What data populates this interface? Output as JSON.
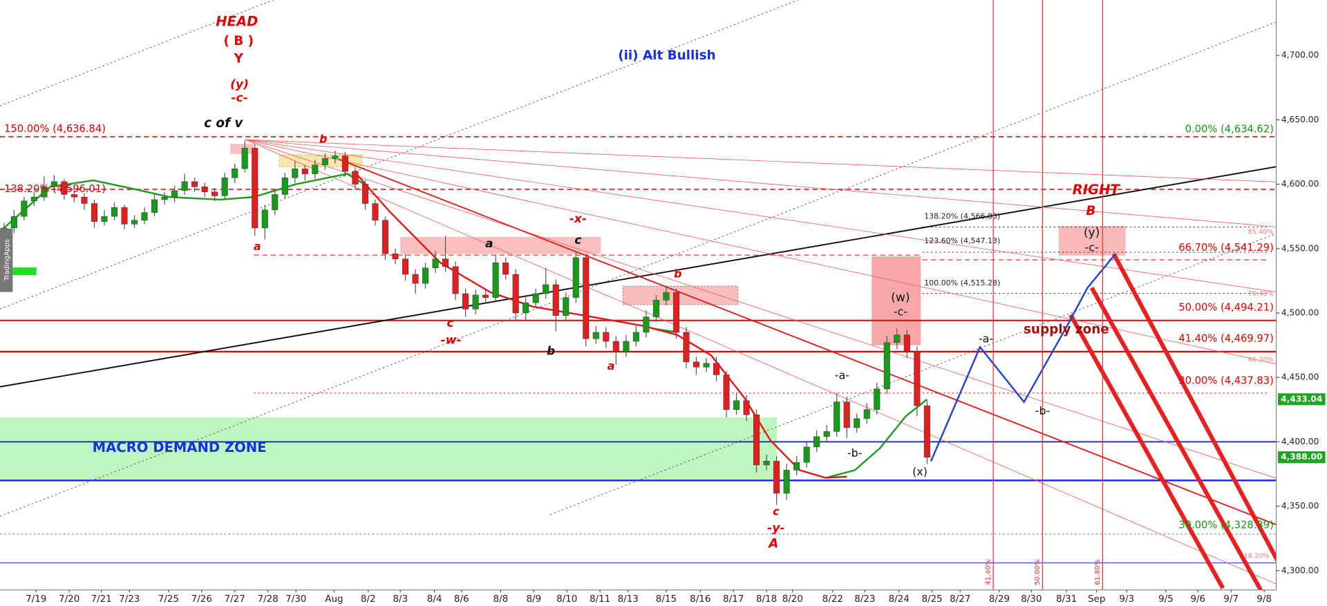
{
  "chart_data": {
    "type": "candlestick",
    "watermark": "TradingApps",
    "up_color": "#1a9a1a",
    "down_color": "#e02020",
    "xlim": [
      -0.4,
      126.8
    ],
    "ylim": [
      4285,
      4743
    ],
    "yticks": [
      {
        "value": 4300,
        "label": "4,300.00"
      },
      {
        "value": 4350,
        "label": "4,350.00"
      },
      {
        "value": 4400,
        "label": "4,400.00"
      },
      {
        "value": 4450,
        "label": "4,450.00"
      },
      {
        "value": 4500,
        "label": "4,500.00"
      },
      {
        "value": 4550,
        "label": "4,550.00"
      },
      {
        "value": 4600,
        "label": "4,600.00"
      },
      {
        "value": 4650,
        "label": "4,650.00"
      },
      {
        "value": 4700,
        "label": "4,700.00"
      }
    ],
    "xticks": [
      {
        "value": 3.2,
        "label": "7/19"
      },
      {
        "value": 6.5,
        "label": "7/20"
      },
      {
        "value": 9.7,
        "label": "7/21"
      },
      {
        "value": 12.5,
        "label": "7/23"
      },
      {
        "value": 16.4,
        "label": "7/25"
      },
      {
        "value": 19.7,
        "label": "7/26"
      },
      {
        "value": 23.0,
        "label": "7/27"
      },
      {
        "value": 26.3,
        "label": "7/28"
      },
      {
        "value": 29.1,
        "label": "7/30"
      },
      {
        "value": 32.9,
        "label": "Aug"
      },
      {
        "value": 36.3,
        "label": "8/2"
      },
      {
        "value": 39.5,
        "label": "8/3"
      },
      {
        "value": 42.9,
        "label": "8/4"
      },
      {
        "value": 45.6,
        "label": "8/6"
      },
      {
        "value": 49.5,
        "label": "8/8"
      },
      {
        "value": 52.8,
        "label": "8/9"
      },
      {
        "value": 56.1,
        "label": "8/10"
      },
      {
        "value": 59.4,
        "label": "8/11"
      },
      {
        "value": 62.2,
        "label": "8/13"
      },
      {
        "value": 66.0,
        "label": "8/15"
      },
      {
        "value": 69.4,
        "label": "8/16"
      },
      {
        "value": 72.7,
        "label": "8/17"
      },
      {
        "value": 76.0,
        "label": "8/18"
      },
      {
        "value": 78.6,
        "label": "8/20"
      },
      {
        "value": 82.6,
        "label": "8/22"
      },
      {
        "value": 85.8,
        "label": "8/23"
      },
      {
        "value": 89.2,
        "label": "8/24"
      },
      {
        "value": 92.5,
        "label": "8/25"
      },
      {
        "value": 95.3,
        "label": "8/27"
      },
      {
        "value": 99.2,
        "label": "8/29"
      },
      {
        "value": 102.4,
        "label": "8/30"
      },
      {
        "value": 105.9,
        "label": "8/31"
      },
      {
        "value": 108.9,
        "label": "Sep"
      },
      {
        "value": 111.9,
        "label": "9/3"
      },
      {
        "value": 115.8,
        "label": "9/5"
      },
      {
        "value": 119.0,
        "label": "9/6"
      },
      {
        "value": 122.3,
        "label": "9/7"
      },
      {
        "value": 125.6,
        "label": "9/8"
      }
    ],
    "x": [
      0,
      1,
      2,
      3,
      4,
      5,
      6,
      7,
      8,
      9,
      10,
      11,
      12,
      13,
      14,
      15,
      16,
      17,
      18,
      19,
      20,
      21,
      22,
      23,
      24,
      25,
      26,
      27,
      28,
      29,
      30,
      31,
      32,
      33,
      34,
      35,
      36,
      37,
      38,
      39,
      40,
      41,
      42,
      43,
      44,
      45,
      46,
      47,
      48,
      49,
      50,
      51,
      52,
      53,
      54,
      55,
      56,
      57,
      58,
      59,
      60,
      61,
      62,
      63,
      64,
      65,
      66,
      67,
      68,
      69,
      70,
      71,
      72,
      73,
      74,
      75,
      76,
      77,
      78,
      79,
      80,
      81,
      82,
      83,
      84,
      85,
      86,
      87,
      88,
      89,
      90,
      91,
      92
    ],
    "ohlc": [
      [
        4560,
        4570,
        4555,
        4566
      ],
      [
        4566,
        4580,
        4562,
        4575
      ],
      [
        4575,
        4590,
        4572,
        4587
      ],
      [
        4587,
        4594,
        4583,
        4590
      ],
      [
        4590,
        4606,
        4587,
        4598
      ],
      [
        4598,
        4607,
        4594,
        4602
      ],
      [
        4602,
        4604,
        4588,
        4592
      ],
      [
        4592,
        4596,
        4586,
        4590
      ],
      [
        4590,
        4593,
        4580,
        4585
      ],
      [
        4585,
        4588,
        4566,
        4571
      ],
      [
        4571,
        4580,
        4568,
        4575
      ],
      [
        4575,
        4586,
        4572,
        4582
      ],
      [
        4582,
        4584,
        4565,
        4569
      ],
      [
        4569,
        4576,
        4566,
        4572
      ],
      [
        4572,
        4582,
        4569,
        4578
      ],
      [
        4578,
        4592,
        4575,
        4588
      ],
      [
        4588,
        4594,
        4584,
        4590
      ],
      [
        4590,
        4599,
        4586,
        4595
      ],
      [
        4595,
        4608,
        4592,
        4602
      ],
      [
        4602,
        4605,
        4594,
        4598
      ],
      [
        4598,
        4601,
        4590,
        4594
      ],
      [
        4594,
        4597,
        4587,
        4591
      ],
      [
        4591,
        4609,
        4588,
        4605
      ],
      [
        4605,
        4616,
        4601,
        4612
      ],
      [
        4612,
        4634,
        4609,
        4628
      ],
      [
        4628,
        4631,
        4560,
        4566
      ],
      [
        4566,
        4584,
        4557,
        4580
      ],
      [
        4580,
        4596,
        4576,
        4592
      ],
      [
        4592,
        4609,
        4589,
        4605
      ],
      [
        4605,
        4618,
        4601,
        4612
      ],
      [
        4612,
        4615,
        4603,
        4608
      ],
      [
        4608,
        4619,
        4604,
        4615
      ],
      [
        4615,
        4624,
        4611,
        4620
      ],
      [
        4620,
        4626,
        4616,
        4622
      ],
      [
        4622,
        4625,
        4606,
        4610
      ],
      [
        4610,
        4613,
        4596,
        4600
      ],
      [
        4600,
        4603,
        4580,
        4585
      ],
      [
        4585,
        4588,
        4568,
        4572
      ],
      [
        4572,
        4575,
        4541,
        4546
      ],
      [
        4546,
        4550,
        4538,
        4542
      ],
      [
        4542,
        4546,
        4525,
        4530
      ],
      [
        4530,
        4534,
        4515,
        4523
      ],
      [
        4523,
        4539,
        4519,
        4535
      ],
      [
        4535,
        4548,
        4531,
        4542
      ],
      [
        4542,
        4560,
        4532,
        4536
      ],
      [
        4536,
        4540,
        4510,
        4515
      ],
      [
        4515,
        4519,
        4497,
        4503
      ],
      [
        4503,
        4518,
        4499,
        4514
      ],
      [
        4514,
        4518,
        4507,
        4512
      ],
      [
        4512,
        4545,
        4509,
        4539
      ],
      [
        4539,
        4543,
        4526,
        4530
      ],
      [
        4530,
        4534,
        4494,
        4500
      ],
      [
        4500,
        4512,
        4494,
        4508
      ],
      [
        4508,
        4519,
        4504,
        4515
      ],
      [
        4515,
        4535,
        4511,
        4522
      ],
      [
        4522,
        4526,
        4486,
        4498
      ],
      [
        4498,
        4516,
        4494,
        4512
      ],
      [
        4512,
        4548,
        4508,
        4543
      ],
      [
        4543,
        4546,
        4474,
        4480
      ],
      [
        4480,
        4490,
        4476,
        4485
      ],
      [
        4485,
        4489,
        4473,
        4478
      ],
      [
        4478,
        4482,
        4460,
        4470
      ],
      [
        4470,
        4483,
        4466,
        4478
      ],
      [
        4478,
        4490,
        4474,
        4485
      ],
      [
        4485,
        4502,
        4481,
        4497
      ],
      [
        4497,
        4514,
        4493,
        4510
      ],
      [
        4510,
        4521,
        4506,
        4516
      ],
      [
        4516,
        4519,
        4480,
        4485
      ],
      [
        4485,
        4489,
        4457,
        4462
      ],
      [
        4462,
        4466,
        4452,
        4458
      ],
      [
        4458,
        4465,
        4454,
        4461
      ],
      [
        4461,
        4466,
        4447,
        4452
      ],
      [
        4452,
        4455,
        4419,
        4425
      ],
      [
        4425,
        4438,
        4421,
        4432
      ],
      [
        4432,
        4436,
        4416,
        4421
      ],
      [
        4421,
        4425,
        4376,
        4382
      ],
      [
        4382,
        4390,
        4378,
        4385
      ],
      [
        4385,
        4389,
        4351,
        4360
      ],
      [
        4360,
        4383,
        4355,
        4378
      ],
      [
        4378,
        4389,
        4374,
        4384
      ],
      [
        4384,
        4400,
        4380,
        4396
      ],
      [
        4396,
        4409,
        4392,
        4404
      ],
      [
        4404,
        4413,
        4400,
        4408
      ],
      [
        4408,
        4438,
        4404,
        4431
      ],
      [
        4431,
        4435,
        4403,
        4411
      ],
      [
        4411,
        4422,
        4407,
        4418
      ],
      [
        4418,
        4430,
        4414,
        4425
      ],
      [
        4425,
        4446,
        4421,
        4441
      ],
      [
        4441,
        4482,
        4437,
        4477
      ],
      [
        4477,
        4488,
        4472,
        4483
      ],
      [
        4483,
        4487,
        4465,
        4470
      ],
      [
        4470,
        4474,
        4420,
        4428
      ],
      [
        4428,
        4432,
        4383,
        4388
      ]
    ],
    "lines": [
      {
        "color": "#1f9a1f",
        "x": [
          0,
          4.6,
          8.9,
          13.1,
          16.5,
          21.5,
          24.9,
          29.1,
          34.2,
          35.9,
          50,
          64.6,
          67.1,
          75,
          81.9,
          84.8,
          87.3,
          89.9,
          92
        ],
        "values": [
          4566,
          4598,
          4603,
          4596,
          4590,
          4588,
          4590,
          4600,
          4608,
          4600,
          null,
          4488,
          4485,
          null,
          4372,
          4378,
          4395,
          4420,
          4433
        ]
      },
      {
        "color": "#e01818",
        "x": [
          35,
          38.4,
          43.5,
          48.5,
          52.7,
          58.6,
          63.7,
          67.1,
          70.5,
          73.8,
          76.4,
          79.3,
          81.9,
          84
        ],
        "values": [
          4609,
          4579,
          4539,
          4516,
          4505,
          4497,
          4490,
          4483,
          4467,
          4434,
          4401,
          4378,
          4372,
          4373
        ]
      }
    ],
    "zones": [
      {
        "label": "MACRO DEMAND ZONE",
        "low": 4371,
        "high": 4419,
        "color": "#b4f5b4"
      }
    ],
    "levels": [
      {
        "value": 4636.84,
        "label": "150.00% (4,636.84)",
        "color": "#e00000",
        "dash": "dashed"
      },
      {
        "value": 4596.01,
        "label": "138.20% (4,596.01)",
        "color": "#e00000",
        "dash": "dashed"
      },
      {
        "value": 4634.62,
        "label": "0.00% (4,634.62)",
        "color": "#119911",
        "dash": "none"
      },
      {
        "value": 4566.83,
        "label": "138.20% (4,566.83)",
        "color": "#222222",
        "dash": "dotted"
      },
      {
        "value": 4547.13,
        "label": "123.60% (4,547.13)",
        "color": "#222222",
        "dash": "dotted"
      },
      {
        "value": 4515.28,
        "label": "100.00% (4,515.28)",
        "color": "#222222",
        "dash": "dotted"
      },
      {
        "value": 4541.29,
        "label": "66.70% (4,541.29)",
        "color": "#e00000",
        "dash": "dashed"
      },
      {
        "value": 4494.21,
        "label": "50.00% (4,494.21)",
        "color": "#e00000",
        "dash": "solid"
      },
      {
        "value": 4469.97,
        "label": "41.40% (4,469.97)",
        "color": "#e00000",
        "dash": "solid"
      },
      {
        "value": 4437.83,
        "label": "30.00% (4,437.83)",
        "color": "#e00000",
        "dash": "dotted"
      },
      {
        "value": 4328.39,
        "label": "30.00% (4,328.39)",
        "color": "#119911",
        "dash": "dotted"
      },
      {
        "value": 4400,
        "color": "#1c2fe0",
        "dash": "solid"
      },
      {
        "value": 4370,
        "color": "#1c2fe0",
        "dash": "solid"
      },
      {
        "value": 4306,
        "color": "#1c2fe0",
        "dash": "solid"
      },
      {
        "value": 4545,
        "color": "#e00000",
        "dash": "dashed"
      }
    ],
    "vlines": [
      {
        "x": 98.6,
        "label": "41.40%",
        "color": "#f03030"
      },
      {
        "x": 103.5,
        "label": "50.00%",
        "color": "#f03030"
      },
      {
        "x": 109.5,
        "label": "61.80%",
        "color": "#f03030"
      }
    ],
    "price_tags": [
      {
        "value": 4433.04,
        "label": "4,433.04",
        "color": "#1fa51f"
      },
      {
        "value": 4388,
        "label": "4,388.00",
        "color": "#1fa51f"
      }
    ],
    "annotations": [
      {
        "text": "HEAD",
        "color": "#e00000"
      },
      {
        "text": "( B )",
        "color": "#e00000"
      },
      {
        "text": "Y",
        "color": "#e00000"
      },
      {
        "text": "(y)",
        "color": "#e00000"
      },
      {
        "text": "-c-",
        "color": "#e00000"
      },
      {
        "text": "c of v",
        "color": "#111111"
      },
      {
        "text": "b",
        "color": "#e00000"
      },
      {
        "text": "a",
        "color": "#e00000"
      },
      {
        "text": "a",
        "color": "#111111"
      },
      {
        "text": "c",
        "color": "#111111"
      },
      {
        "text": "-x-",
        "color": "#e00000"
      },
      {
        "text": "c",
        "color": "#e00000"
      },
      {
        "text": "-w-",
        "color": "#e00000"
      },
      {
        "text": "b",
        "color": "#111111"
      },
      {
        "text": "a",
        "color": "#e00000"
      },
      {
        "text": "b",
        "color": "#e00000"
      },
      {
        "text": "c",
        "color": "#e00000"
      },
      {
        "text": "-y-",
        "color": "#e00000"
      },
      {
        "text": "A",
        "color": "#e00000"
      },
      {
        "text": "(ii) Alt Bullish",
        "color": "#1c2fe0"
      },
      {
        "text": "-a-",
        "color": "#111111"
      },
      {
        "text": "-b-",
        "color": "#111111"
      },
      {
        "text": "(w)",
        "color": "#111111"
      },
      {
        "text": "-c-",
        "color": "#111111"
      },
      {
        "text": "(x)",
        "color": "#111111"
      },
      {
        "text": "-a-",
        "color": "#111111"
      },
      {
        "text": "-b-",
        "color": "#111111"
      },
      {
        "text": "supply zone",
        "color": "#a01010"
      },
      {
        "text": "RIGHT",
        "color": "#e00000"
      },
      {
        "text": "B",
        "color": "#e00000"
      },
      {
        "text": "(y)",
        "color": "#111111"
      },
      {
        "text": "-c-",
        "color": "#111111"
      },
      {
        "text": "85.40%",
        "color": "#f08080"
      },
      {
        "text": "70.40%",
        "color": "#f08080"
      },
      {
        "text": "66.70%",
        "color": "#f08080"
      },
      {
        "text": "18.20%",
        "color": "#f08080"
      }
    ]
  }
}
